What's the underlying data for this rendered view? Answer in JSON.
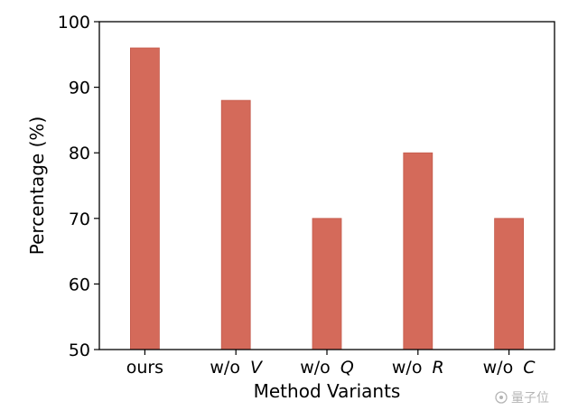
{
  "chart_data": {
    "type": "bar",
    "categories": [
      {
        "main": "ours",
        "italic": ""
      },
      {
        "main": "w/o ",
        "italic": "V"
      },
      {
        "main": "w/o ",
        "italic": "Q"
      },
      {
        "main": "w/o ",
        "italic": "R"
      },
      {
        "main": "w/o ",
        "italic": "C"
      }
    ],
    "values": [
      96,
      88,
      70,
      80,
      70
    ],
    "title": "",
    "xlabel": "Method Variants",
    "ylabel": "Percentage (%)",
    "ylim": [
      50,
      100
    ],
    "yticks": [
      50,
      60,
      70,
      80,
      90,
      100
    ],
    "bar_color": "#d46a5a",
    "bar_edge_color": "#c45a4b",
    "grid": false,
    "legend": "none"
  },
  "watermark": {
    "text": "量子位"
  }
}
